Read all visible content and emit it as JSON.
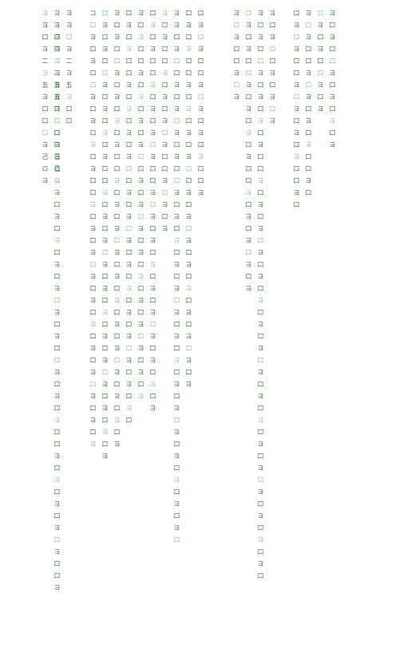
{
  "scene": {
    "name": "matrix-glyph-rain",
    "glyph_color": "#2f7a2f",
    "glyph_dim_color": "#8fbf8f",
    "background": "#ffffff"
  },
  "columns": [
    {
      "glyphs": "ヨヨ口ヨ二ヨ五ヨ口口口ヨ己ロヨ"
    },
    {
      "glyphs": "ヨヨ口ヨ二ヨ五ヨ口口口ヨ己ロヨ"
    },
    {
      "glyphs": "ヨヨ口ヨ二ヨ五ヨ口口口ヨ己ロヨ口ヨ口ヨ口ヨ口ヨ口ヨ口ヨ口口ヨ口ヨ口ヨ口口ヨ口ヨ口ヨ口ヨ口ヨ口口ヨ"
    },
    {
      "glyphs": "ヨヨ口ヨ二ヨ五ヨ口口"
    },
    {
      "glyphs": "コ口ヨ口ヨ口口ヨ口ヨ口ヨ口ヨ口口ヨ口ヨ口ヨ口ヨ口ヨ口ヨ口ヨ口ヨ口ヨ口ヨ口ヨ"
    },
    {
      "glyphs": "口ヨ口ヨ口口ヨ口ヨ口ヨ口ヨ口口ヨ口ヨ口ヨ口ヨ口ヨ口ヨ口ヨ口ヨ口ヨ口ヨ口ヨ口ヨ"
    },
    {
      "glyphs": "ヨ口ヨ口口ヨ口ヨ口ヨ口ヨ口口ヨ口ヨ口ヨ口ヨ口ヨ口ヨ口ヨ口ヨ口ヨ口ヨ口ヨ口ヨ"
    },
    {
      "glyphs": "口ヨ口ヨ口口ヨ口ヨ口ヨ口ヨ口口ヨ口ヨ口ヨ口ヨ口ヨ口ヨ口ヨ口ヨ口ヨ口ヨ口"
    },
    {
      "glyphs": "ヨ口ヨ口口ヨ口ヨ口ヨ口ヨ口口ヨ口ヨ口ヨ口ヨ口ヨ口ヨ口ヨ口ヨ口ヨ口ヨ"
    },
    {
      "glyphs": "口ヨ口ヨ口口ヨ口ヨ口ヨ口ヨ口口ヨ口ヨ口ヨ口ヨ口ヨ口ヨ口ヨ口ヨ口ヨ口ヨ"
    },
    {
      "glyphs": "ヨ口ヨ口口ヨ口ヨ口ヨ口ヨ口口ヨ口ヨ口ヨ"
    },
    {
      "glyphs": "ヨヨ口ヨ口口ヨ口ヨ口ヨ口ヨ口口ヨ口ヨ口ヨ口ヨ口ヨ口ヨ口ヨ口ヨ口ヨ口ヨ口ヨ口ヨ口ヨ口ヨ口ヨ口"
    },
    {
      "glyphs": "口ヨ口ヨ口口ヨ口ヨ口ヨ口ヨ口口ヨ口ヨ口ヨ口ヨ口ヨ口ヨ口ヨ口ヨ口ヨ"
    },
    {
      "glyphs": "口ヨ口ヨ口口ヨ口ヨ口ヨ口ヨ口口ヨ"
    },
    {
      "glyphs": "ヨ口ヨ口口ヨ口ヨ"
    },
    {
      "glyphs": "口ヨ口ヨ口口ヨ口ヨ口ヨ口ヨ口口ヨ口ヨ口ヨ口ヨ口ヨ"
    },
    {
      "glyphs": "ヨ口ヨ口口ヨ口ヨ口ヨ口ヨ口口ヨ口ヨ口ヨ口ヨ口ヨ口ヨ口ヨ口ヨ口ヨ口ヨ口ヨ口ヨ口ヨ口ヨ口ヨ口ヨ口ヨ口"
    },
    {
      "glyphs": "ヨ口ヨ口口ヨ口ヨ口ヨ"
    },
    {
      "glyphs": "口ヨ口ヨ口口ヨ口ヨ口ヨ口ヨ口口ヨ口"
    },
    {
      "glyphs": "ヨ口ヨ口口ヨ口ヨ口ヨ口ヨ口口ヨ口"
    },
    {
      "glyphs": "口ヨ口ヨ口口ヨ口ヨ"
    },
    {
      "glyphs": "ヨ口ヨ口口ヨ口ヨ口ヨ口ヨ"
    }
  ]
}
